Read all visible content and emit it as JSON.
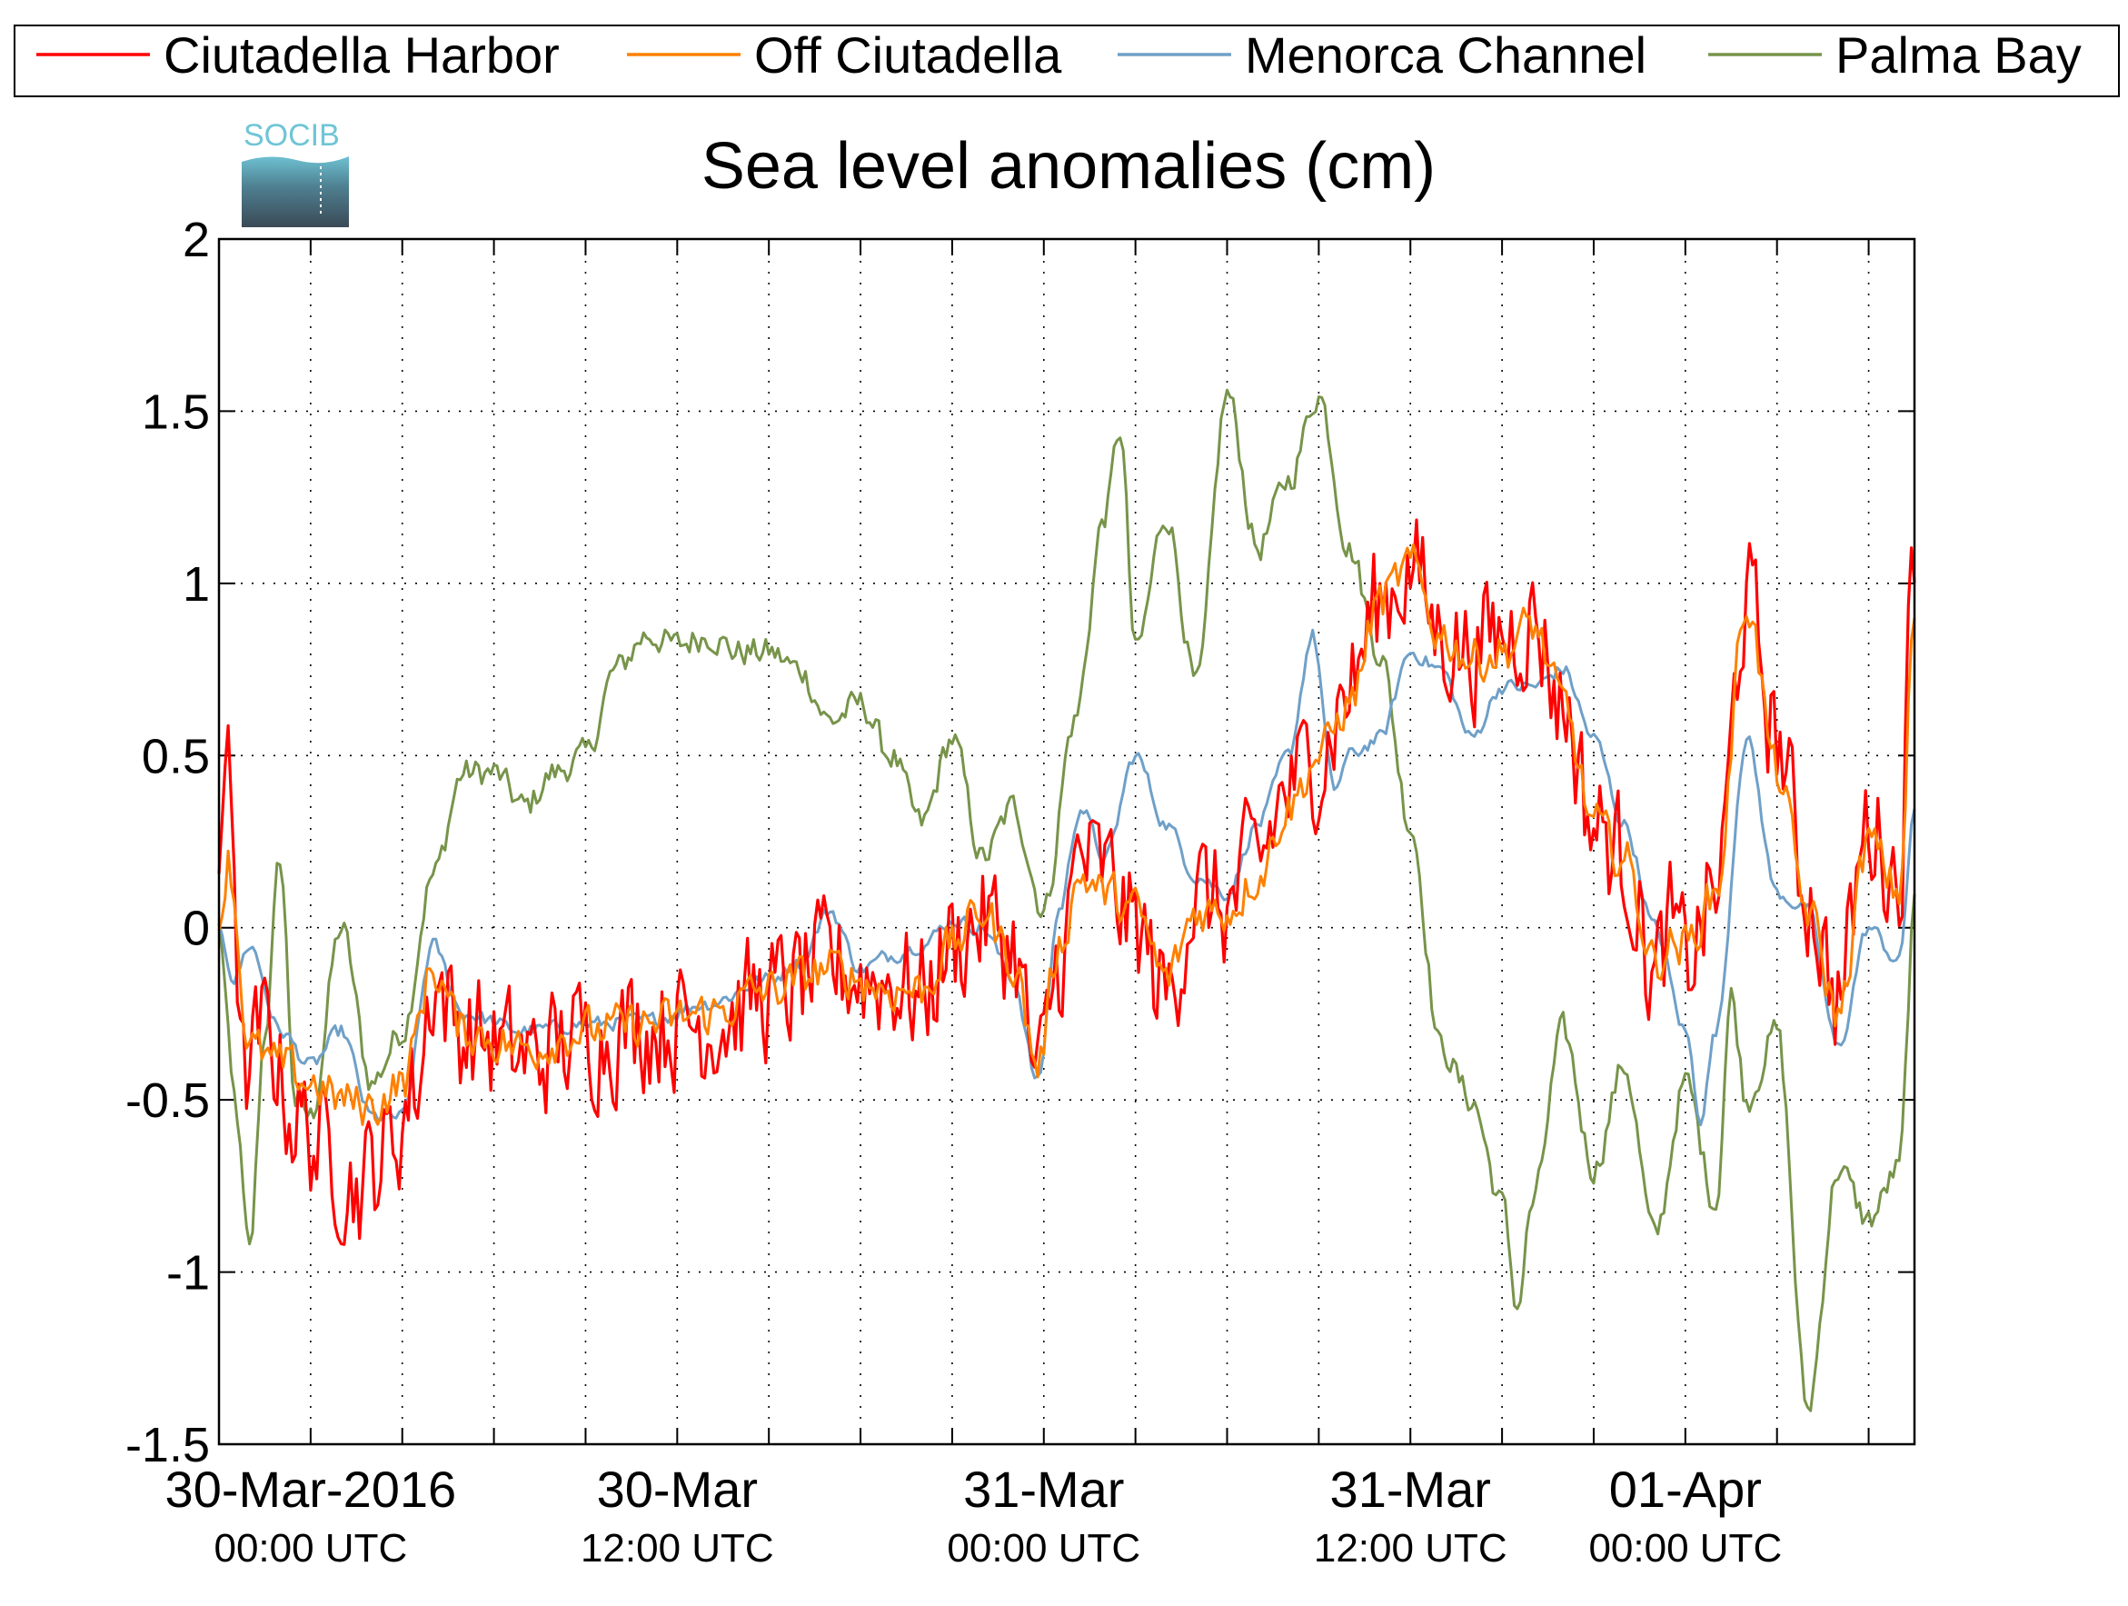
{
  "chart_data": {
    "type": "line",
    "title": "Sea level anomalies (cm)",
    "logo_text": "SOCIB",
    "xlabel": "",
    "ylabel": "",
    "x_range_hours": [
      0,
      48
    ],
    "ylim": [
      -1.5,
      2
    ],
    "y_ticks": [
      2,
      1.5,
      1,
      0.5,
      0,
      -0.5,
      -1,
      -1.5
    ],
    "y_tick_labels": [
      "2",
      "1.5",
      "1",
      "0.5",
      "0",
      "-0.5",
      "-1",
      "-1.5"
    ],
    "x_tick_labels": [
      {
        "hour": 3,
        "date": "30-Mar-2016",
        "time": "00:00 UTC"
      },
      {
        "hour": 15,
        "date": "30-Mar",
        "time": "12:00 UTC"
      },
      {
        "hour": 27,
        "date": "31-Mar",
        "time": "00:00 UTC"
      },
      {
        "hour": 39,
        "date": "31-Mar",
        "time": "12:00 UTC"
      },
      {
        "hour": 48,
        "date": "01-Apr",
        "time": "00:00 UTC"
      }
    ],
    "grid": true,
    "legend_position": "top",
    "series": [
      {
        "name": "Ciutadella Harbor",
        "color": "#ff0000",
        "noise": 0.17,
        "width": 3.2,
        "points": [
          [
            0,
            0.0
          ],
          [
            0.3,
            0.6
          ],
          [
            0.8,
            -0.45
          ],
          [
            1.5,
            -0.3
          ],
          [
            2.5,
            -0.55
          ],
          [
            3.5,
            -0.65
          ],
          [
            4.5,
            -0.75
          ],
          [
            5.5,
            -0.65
          ],
          [
            6.5,
            -0.45
          ],
          [
            7,
            -0.15
          ],
          [
            8,
            -0.3
          ],
          [
            10,
            -0.38
          ],
          [
            12,
            -0.32
          ],
          [
            14,
            -0.28
          ],
          [
            16,
            -0.27
          ],
          [
            18,
            -0.2
          ],
          [
            20,
            -0.12
          ],
          [
            22,
            -0.15
          ],
          [
            23,
            -0.2
          ],
          [
            24,
            -0.05
          ],
          [
            25,
            0.02
          ],
          [
            26,
            -0.05
          ],
          [
            26.8,
            -0.45
          ],
          [
            27.5,
            -0.1
          ],
          [
            28.2,
            0.2
          ],
          [
            29,
            0.15
          ],
          [
            30,
            0.0
          ],
          [
            31,
            -0.2
          ],
          [
            32,
            0.1
          ],
          [
            33,
            0.05
          ],
          [
            34,
            0.2
          ],
          [
            35,
            0.4
          ],
          [
            36,
            0.5
          ],
          [
            37,
            0.7
          ],
          [
            38,
            0.95
          ],
          [
            39,
            1.05
          ],
          [
            40,
            0.85
          ],
          [
            41,
            0.8
          ],
          [
            42,
            0.85
          ],
          [
            43,
            0.9
          ],
          [
            44,
            0.65
          ],
          [
            45,
            0.3
          ],
          [
            46,
            0.2
          ],
          [
            47,
            -0.15
          ],
          [
            47.5,
            0.0
          ],
          [
            48,
            -0.1
          ],
          [
            49,
            0.1
          ],
          [
            50,
            0.95
          ],
          [
            51,
            0.55
          ],
          [
            52,
            0.1
          ],
          [
            53,
            -0.2
          ],
          [
            54,
            0.3
          ],
          [
            55,
            0.15
          ],
          [
            55.5,
            1.15
          ]
        ]
      },
      {
        "name": "Off Ciutadella",
        "color": "#ff8000",
        "noise": 0.06,
        "width": 3,
        "points": [
          [
            0,
            0.0
          ],
          [
            0.3,
            0.2
          ],
          [
            1,
            -0.35
          ],
          [
            2,
            -0.4
          ],
          [
            3,
            -0.45
          ],
          [
            4,
            -0.5
          ],
          [
            5,
            -0.52
          ],
          [
            6,
            -0.45
          ],
          [
            7,
            -0.12
          ],
          [
            8,
            -0.3
          ],
          [
            10,
            -0.35
          ],
          [
            12,
            -0.3
          ],
          [
            14,
            -0.28
          ],
          [
            16,
            -0.25
          ],
          [
            18,
            -0.18
          ],
          [
            20,
            -0.12
          ],
          [
            22,
            -0.18
          ],
          [
            23,
            -0.18
          ],
          [
            24,
            -0.05
          ],
          [
            25,
            0.05
          ],
          [
            26,
            -0.1
          ],
          [
            26.8,
            -0.4
          ],
          [
            27.5,
            -0.05
          ],
          [
            28.2,
            0.15
          ],
          [
            29,
            0.1
          ],
          [
            30,
            0.05
          ],
          [
            31,
            -0.15
          ],
          [
            32,
            0.05
          ],
          [
            33,
            0.05
          ],
          [
            34,
            0.15
          ],
          [
            35,
            0.35
          ],
          [
            36,
            0.5
          ],
          [
            37,
            0.65
          ],
          [
            38,
            0.95
          ],
          [
            39,
            1.05
          ],
          [
            40,
            0.85
          ],
          [
            41,
            0.78
          ],
          [
            42,
            0.8
          ],
          [
            43,
            0.88
          ],
          [
            44,
            0.65
          ],
          [
            45,
            0.3
          ],
          [
            46,
            0.2
          ],
          [
            47,
            -0.1
          ],
          [
            47.5,
            -0.05
          ],
          [
            48,
            -0.05
          ],
          [
            49,
            0.1
          ],
          [
            50,
            0.95
          ],
          [
            51,
            0.45
          ],
          [
            52,
            0.05
          ],
          [
            53,
            -0.25
          ],
          [
            54,
            0.25
          ],
          [
            55,
            0.1
          ],
          [
            55.5,
            0.9
          ]
        ]
      },
      {
        "name": "Menorca Channel",
        "color": "#6fa0c8",
        "noise": 0.02,
        "width": 3,
        "points": [
          [
            0,
            0.0
          ],
          [
            0.5,
            -0.15
          ],
          [
            1,
            -0.05
          ],
          [
            2,
            -0.3
          ],
          [
            3,
            -0.4
          ],
          [
            4,
            -0.3
          ],
          [
            5,
            -0.55
          ],
          [
            6,
            -0.55
          ],
          [
            7,
            -0.05
          ],
          [
            8,
            -0.25
          ],
          [
            10,
            -0.3
          ],
          [
            12,
            -0.28
          ],
          [
            14,
            -0.27
          ],
          [
            16,
            -0.22
          ],
          [
            18,
            -0.15
          ],
          [
            19,
            -0.1
          ],
          [
            20,
            0.05
          ],
          [
            21,
            -0.12
          ],
          [
            22,
            -0.08
          ],
          [
            23,
            -0.05
          ],
          [
            24,
            0.02
          ],
          [
            25,
            0.0
          ],
          [
            26,
            -0.15
          ],
          [
            26.8,
            -0.45
          ],
          [
            27.5,
            0.05
          ],
          [
            28.2,
            0.35
          ],
          [
            29,
            0.2
          ],
          [
            30,
            0.5
          ],
          [
            31,
            0.3
          ],
          [
            32,
            0.15
          ],
          [
            33,
            0.1
          ],
          [
            34,
            0.3
          ],
          [
            35,
            0.5
          ],
          [
            35.8,
            0.85
          ],
          [
            36.5,
            0.4
          ],
          [
            37,
            0.5
          ],
          [
            38,
            0.55
          ],
          [
            39,
            0.8
          ],
          [
            40,
            0.75
          ],
          [
            41,
            0.55
          ],
          [
            42,
            0.7
          ],
          [
            43,
            0.7
          ],
          [
            44,
            0.75
          ],
          [
            45,
            0.55
          ],
          [
            46,
            0.3
          ],
          [
            47,
            0.0
          ],
          [
            48,
            -0.3
          ],
          [
            48.5,
            -0.55
          ],
          [
            49,
            -0.3
          ],
          [
            50,
            0.55
          ],
          [
            51,
            0.1
          ],
          [
            52,
            0.05
          ],
          [
            53,
            -0.35
          ],
          [
            54,
            0.0
          ],
          [
            55,
            -0.1
          ],
          [
            55.5,
            0.35
          ]
        ]
      },
      {
        "name": "Palma Bay",
        "color": "#77944a",
        "noise": 0.04,
        "width": 3,
        "points": [
          [
            0,
            0.0
          ],
          [
            0.5,
            -0.5
          ],
          [
            1,
            -0.95
          ],
          [
            1.5,
            -0.3
          ],
          [
            2,
            0.2
          ],
          [
            2.5,
            -0.5
          ],
          [
            3,
            -0.55
          ],
          [
            4,
            0.0
          ],
          [
            5,
            -0.45
          ],
          [
            6,
            -0.3
          ],
          [
            7,
            0.15
          ],
          [
            8,
            0.45
          ],
          [
            9,
            0.45
          ],
          [
            10,
            0.35
          ],
          [
            11,
            0.45
          ],
          [
            12,
            0.5
          ],
          [
            13,
            0.75
          ],
          [
            14,
            0.85
          ],
          [
            15,
            0.82
          ],
          [
            16,
            0.85
          ],
          [
            17,
            0.8
          ],
          [
            18,
            0.8
          ],
          [
            19,
            0.75
          ],
          [
            20,
            0.6
          ],
          [
            21,
            0.65
          ],
          [
            22,
            0.5
          ],
          [
            23,
            0.3
          ],
          [
            24,
            0.55
          ],
          [
            25,
            0.2
          ],
          [
            26,
            0.35
          ],
          [
            27,
            0.05
          ],
          [
            28,
            0.6
          ],
          [
            29,
            1.2
          ],
          [
            29.5,
            1.45
          ],
          [
            30,
            0.8
          ],
          [
            31,
            1.2
          ],
          [
            32,
            0.7
          ],
          [
            33,
            1.55
          ],
          [
            34,
            1.1
          ],
          [
            35,
            1.3
          ],
          [
            36,
            1.55
          ],
          [
            37,
            1.1
          ],
          [
            38,
            0.8
          ],
          [
            39,
            0.3
          ],
          [
            40,
            -0.35
          ],
          [
            41,
            -0.5
          ],
          [
            42,
            -0.8
          ],
          [
            42.5,
            -1.1
          ],
          [
            43,
            -0.8
          ],
          [
            44,
            -0.3
          ],
          [
            45,
            -0.7
          ],
          [
            46,
            -0.4
          ],
          [
            47,
            -0.9
          ],
          [
            48,
            -0.45
          ],
          [
            49,
            -0.8
          ],
          [
            49.5,
            -0.2
          ],
          [
            50,
            -0.5
          ],
          [
            51,
            -0.3
          ],
          [
            52,
            -1.4
          ],
          [
            53,
            -0.7
          ],
          [
            54,
            -0.85
          ],
          [
            55,
            -0.7
          ],
          [
            55.5,
            0.05
          ]
        ]
      }
    ]
  }
}
